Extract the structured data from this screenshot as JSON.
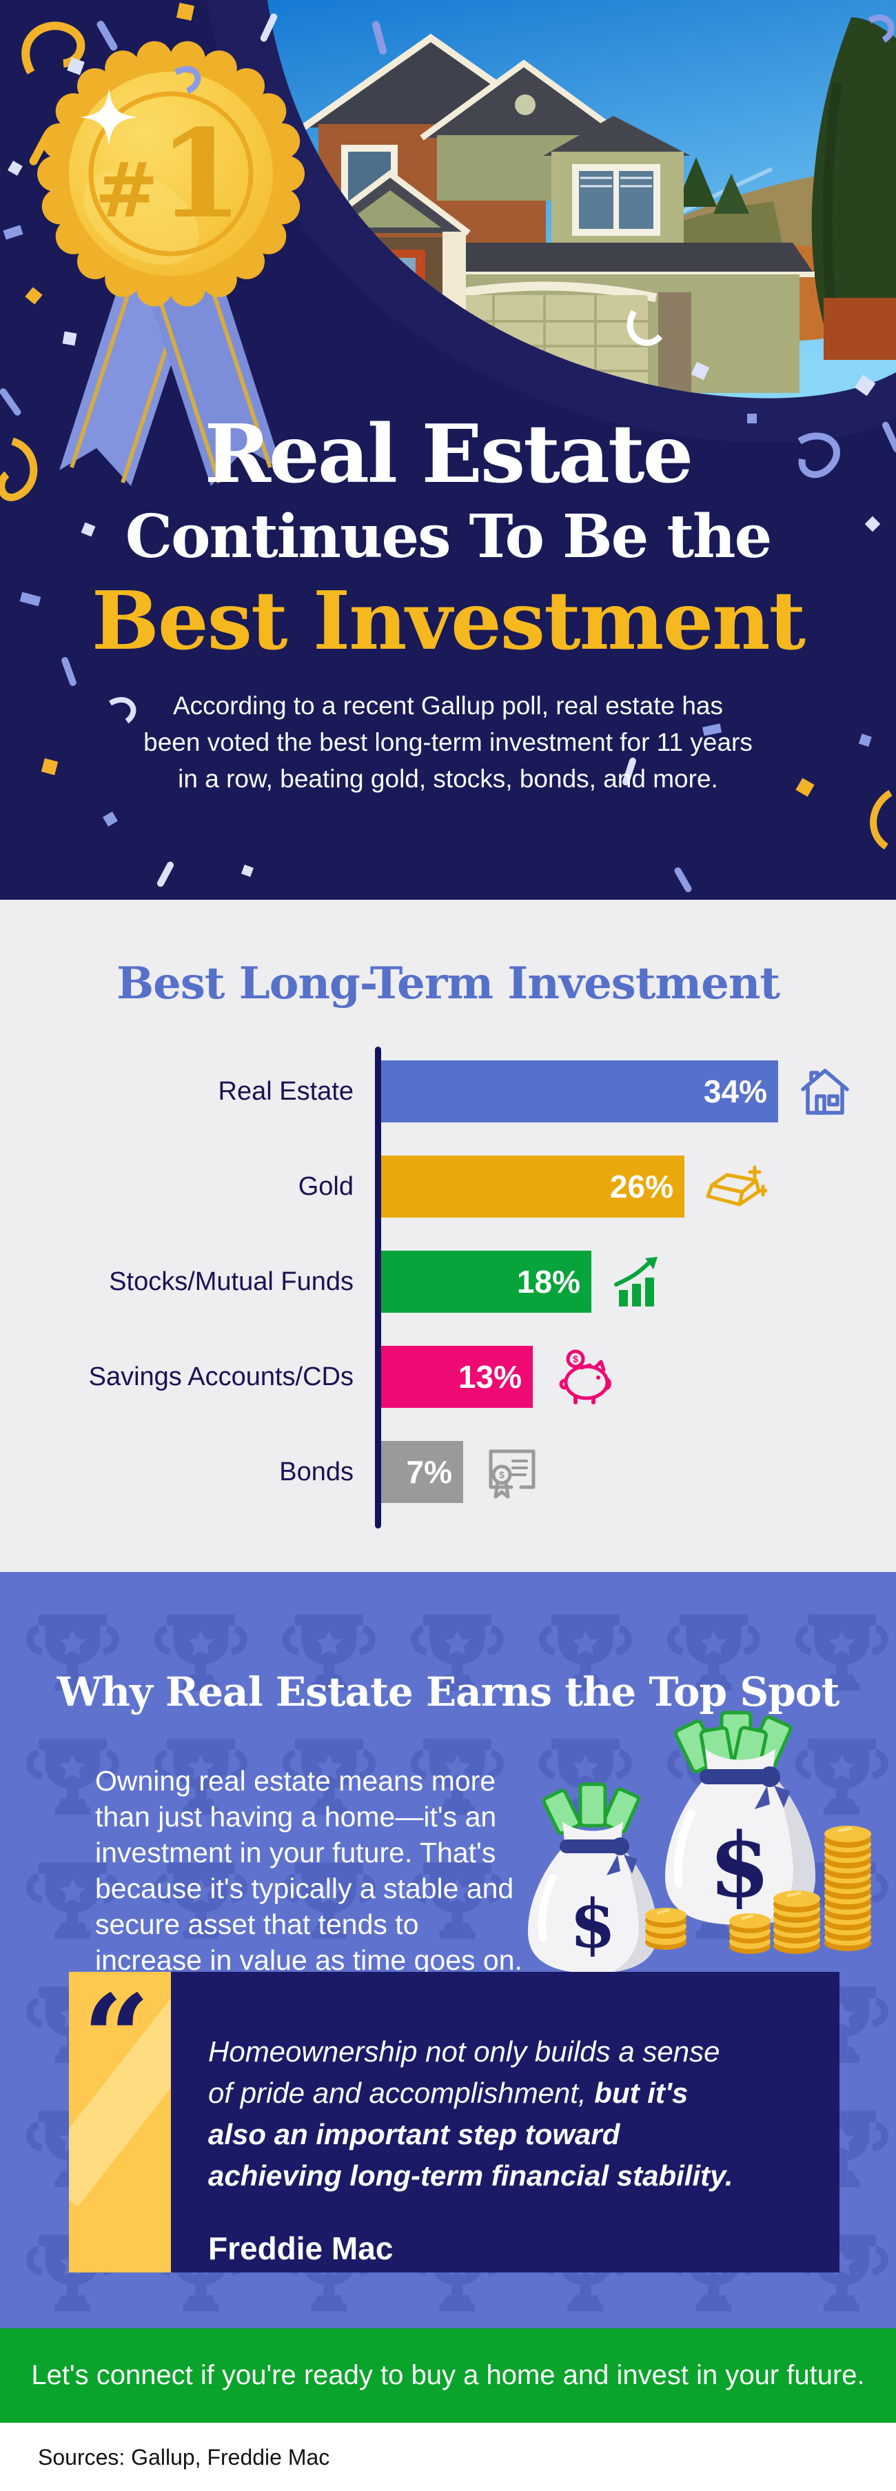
{
  "hero": {
    "badge_label": "#1",
    "title_line1": "Real Estate",
    "title_line2": "Continues To Be the",
    "title_line3": "Best Investment",
    "subtitle": "According to a recent Gallup poll, real estate has\nbeen voted the best long-term investment for 11 years\nin a row, beating gold, stocks, bonds, and more."
  },
  "chart_data": {
    "type": "bar",
    "orientation": "horizontal",
    "title": "Best Long-Term Investment",
    "categories": [
      "Real Estate",
      "Gold",
      "Stocks/Mutual Funds",
      "Savings Accounts/CDs",
      "Bonds"
    ],
    "values": [
      34,
      26,
      18,
      13,
      7
    ],
    "labels": [
      "34%",
      "26%",
      "18%",
      "13%",
      "7%"
    ],
    "unit": "%",
    "colors": [
      "#5571CB",
      "#E9A90C",
      "#07A43B",
      "#EE0973",
      "#9A999B"
    ],
    "icons": [
      "house-icon",
      "gold-bars-icon",
      "growth-chart-icon",
      "piggy-bank-icon",
      "certificate-icon"
    ],
    "xlim": [
      0,
      34
    ],
    "value_label_position": "inside-end",
    "grid": false,
    "legend": false
  },
  "why": {
    "heading": "Why Real Estate Earns the Top Spot",
    "body": "Owning real estate means more\nthan just having a home—it's an\ninvestment in your future. That's\nbecause it's typically a stable and\nsecure asset that tends to\nincrease in value as time goes on.",
    "quote": {
      "mark": "“",
      "text_regular": "Homeownership not only builds a sense\nof pride and accomplishment, ",
      "text_bold": "but it's\nalso an important step toward\nachieving long-term financial stability.",
      "attribution": "Freddie Mac"
    }
  },
  "cta": {
    "text": "Let's connect if you're ready to buy a home and invest in your future."
  },
  "footer": {
    "sources": "Sources: Gallup, Freddie Mac"
  },
  "palette": {
    "hero_navy": "#191A57",
    "periwinkle_section": "#5F73CE",
    "gold_accent": "#F2B32A",
    "title_gold": "#F5B81F",
    "chart_title_blue": "#5571C9",
    "axis_navy": "#14135B",
    "chart_bg": "#EEEDEF",
    "quote_navy": "#1B1A66",
    "quote_stripe_gold": "#FFC84F",
    "cta_green": "#0AA32B"
  }
}
